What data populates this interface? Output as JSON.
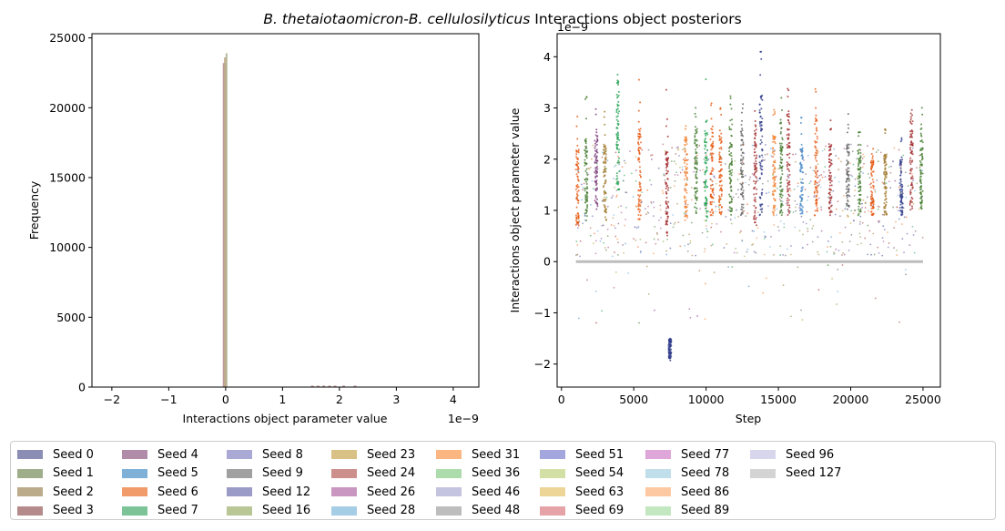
{
  "figure": {
    "title_italic": "B. thetaiotaomicron-B. cellulosilyticus",
    "title_rest": " Interactions object posteriors"
  },
  "chart_data": [
    {
      "type": "histogram",
      "xlabel": "Interactions object parameter value",
      "ylabel": "Frequency",
      "x_offset_text": "1e−9",
      "x_scale": 1e-09,
      "xlim": [
        -2.35,
        4.45
      ],
      "ylim": [
        0,
        25300
      ],
      "xticks": [
        -2,
        -1,
        0,
        1,
        2,
        3,
        4
      ],
      "xtick_labels": [
        "−2",
        "−1",
        "0",
        "1",
        "2",
        "3",
        "4"
      ],
      "yticks": [
        0,
        5000,
        10000,
        15000,
        20000,
        25000
      ],
      "ytick_labels": [
        "0",
        "5000",
        "10000",
        "15000",
        "20000",
        "25000"
      ],
      "bars": [
        {
          "x0": -0.05,
          "x1": 0.0,
          "value": 23200,
          "series": "Seed 3"
        },
        {
          "x0": 0.0,
          "x1": 0.03,
          "value": 23900,
          "series": "Seed 1"
        },
        {
          "x0": -0.03,
          "x1": 0.02,
          "value": 23600,
          "series": "Seed 2"
        }
      ]
    },
    {
      "type": "scatter",
      "xlabel": "Step",
      "ylabel": "Interactions object parameter value",
      "y_offset_text": "1e−9",
      "y_scale": 1e-09,
      "xlim": [
        -300,
        26200
      ],
      "ylim": [
        -2.45,
        4.45
      ],
      "xticks": [
        0,
        5000,
        10000,
        15000,
        20000,
        25000
      ],
      "xtick_labels": [
        "0",
        "5000",
        "10000",
        "15000",
        "20000",
        "25000"
      ],
      "yticks": [
        -2,
        -1,
        0,
        1,
        2,
        3,
        4
      ],
      "ytick_labels": [
        "−2",
        "−1",
        "0",
        "1",
        "2",
        "3",
        "4"
      ],
      "baseline": {
        "x0": 1000,
        "x1": 25000,
        "value": 0,
        "color": "#bdbdbd"
      },
      "point_clusters": [
        {
          "x": 1100,
          "ymin": 0.7,
          "ymax": 2.2,
          "ext": 3.0,
          "series": 6
        },
        {
          "x": 1700,
          "ymin": 0.8,
          "ymax": 2.4,
          "ext": 3.3,
          "series": 1
        },
        {
          "x": 2400,
          "ymin": 1.0,
          "ymax": 2.5,
          "ext": 3.0,
          "series": 4
        },
        {
          "x": 3000,
          "ymin": 0.8,
          "ymax": 2.3,
          "ext": 3.0,
          "series": 2
        },
        {
          "x": 3900,
          "ymin": 1.4,
          "ymax": 3.5,
          "ext": 3.7,
          "series": 7
        },
        {
          "x": 5400,
          "ymin": 0.8,
          "ymax": 2.6,
          "ext": 3.6,
          "series": 6
        },
        {
          "x": 7300,
          "ymin": 0.5,
          "ymax": 2.2,
          "ext": 3.5,
          "series": 3
        },
        {
          "x": 7500,
          "ymin": -1.9,
          "ymax": -1.5,
          "ext": -2.1,
          "series": 0
        },
        {
          "x": 8600,
          "ymin": 0.8,
          "ymax": 2.4,
          "ext": 3.0,
          "series": 16
        },
        {
          "x": 9300,
          "ymin": 0.9,
          "ymax": 2.6,
          "ext": 3.1,
          "series": 1
        },
        {
          "x": 10000,
          "ymin": 0.8,
          "ymax": 2.6,
          "ext": 3.8,
          "series": 7
        },
        {
          "x": 10400,
          "ymin": 0.9,
          "ymax": 2.6,
          "ext": 3.3,
          "series": 6
        },
        {
          "x": 11000,
          "ymin": 0.9,
          "ymax": 2.5,
          "ext": 3.0,
          "series": 6
        },
        {
          "x": 11700,
          "ymin": 0.9,
          "ymax": 2.8,
          "ext": 3.4,
          "series": 1
        },
        {
          "x": 12500,
          "ymin": 0.9,
          "ymax": 2.7,
          "ext": 3.1,
          "series": 9
        },
        {
          "x": 13400,
          "ymin": 0.7,
          "ymax": 2.6,
          "ext": 3.2,
          "series": 3
        },
        {
          "x": 13800,
          "ymin": 0.9,
          "ymax": 3.4,
          "ext": 4.1,
          "series": 0
        },
        {
          "x": 14700,
          "ymin": 0.9,
          "ymax": 2.5,
          "ext": 3.0,
          "series": 16
        },
        {
          "x": 15200,
          "ymin": 0.9,
          "ymax": 2.7,
          "ext": 3.2,
          "series": 1
        },
        {
          "x": 15700,
          "ymin": 0.9,
          "ymax": 2.9,
          "ext": 3.4,
          "series": 3
        },
        {
          "x": 16600,
          "ymin": 0.9,
          "ymax": 2.3,
          "ext": 2.9,
          "series": 5
        },
        {
          "x": 17600,
          "ymin": 0.9,
          "ymax": 2.8,
          "ext": 3.4,
          "series": 6
        },
        {
          "x": 18600,
          "ymin": 0.9,
          "ymax": 2.3,
          "ext": 2.9,
          "series": 3
        },
        {
          "x": 19800,
          "ymin": 1.0,
          "ymax": 2.3,
          "ext": 2.9,
          "series": 9
        },
        {
          "x": 20600,
          "ymin": 0.9,
          "ymax": 2.3,
          "ext": 2.8,
          "series": 1
        },
        {
          "x": 21500,
          "ymin": 0.9,
          "ymax": 2.0,
          "ext": 2.4,
          "series": 6
        },
        {
          "x": 22400,
          "ymin": 0.9,
          "ymax": 2.1,
          "ext": 2.6,
          "series": 2
        },
        {
          "x": 23500,
          "ymin": 0.9,
          "ymax": 2.0,
          "ext": 2.5,
          "series": 0
        },
        {
          "x": 24200,
          "ymin": 0.9,
          "ymax": 2.8,
          "ext": 3.1,
          "series": 3
        },
        {
          "x": 24900,
          "ymin": 1.0,
          "ymax": 2.6,
          "ext": 3.1,
          "series": 1
        }
      ]
    }
  ],
  "legend": {
    "columns": 9,
    "items": [
      {
        "label": "Seed 0",
        "color": "#8b8db5"
      },
      {
        "label": "Seed 1",
        "color": "#9fae8a"
      },
      {
        "label": "Seed 2",
        "color": "#bcab8a"
      },
      {
        "label": "Seed 3",
        "color": "#b58a8a"
      },
      {
        "label": "Seed 4",
        "color": "#b08ca9"
      },
      {
        "label": "Seed 5",
        "color": "#7fb0d8"
      },
      {
        "label": "Seed 6",
        "color": "#f19b6b"
      },
      {
        "label": "Seed 7",
        "color": "#7cc497"
      },
      {
        "label": "Seed 8",
        "color": "#aaa8d4"
      },
      {
        "label": "Seed 9",
        "color": "#a0a0a0"
      },
      {
        "label": "Seed 12",
        "color": "#9b9bc8"
      },
      {
        "label": "Seed 16",
        "color": "#b9c696"
      },
      {
        "label": "Seed 23",
        "color": "#d9c185"
      },
      {
        "label": "Seed 24",
        "color": "#cd8f8b"
      },
      {
        "label": "Seed 26",
        "color": "#c996c2"
      },
      {
        "label": "Seed 28",
        "color": "#a6cde6"
      },
      {
        "label": "Seed 31",
        "color": "#fcb682"
      },
      {
        "label": "Seed 36",
        "color": "#addcac"
      },
      {
        "label": "Seed 46",
        "color": "#c4c3e0"
      },
      {
        "label": "Seed 48",
        "color": "#bdbdbd"
      },
      {
        "label": "Seed 51",
        "color": "#a4a7de"
      },
      {
        "label": "Seed 54",
        "color": "#d3e0a5"
      },
      {
        "label": "Seed 63",
        "color": "#edd598"
      },
      {
        "label": "Seed 69",
        "color": "#e5a3a7"
      },
      {
        "label": "Seed 77",
        "color": "#dfa7d9"
      },
      {
        "label": "Seed 78",
        "color": "#c1deeb"
      },
      {
        "label": "Seed 86",
        "color": "#fcc9a2"
      },
      {
        "label": "Seed 89",
        "color": "#c3e8c1"
      },
      {
        "label": "Seed 96",
        "color": "#d7d6ec"
      },
      {
        "label": "Seed 127",
        "color": "#d4d4d4"
      }
    ]
  },
  "scatter_palette": [
    "#2f3b8a",
    "#3f7a2a",
    "#a0782a",
    "#a0282a",
    "#7a3a7a",
    "#4a8ac8",
    "#e6550d",
    "#20a050",
    "#6a5aa8",
    "#606060",
    "#4a4aa0",
    "#7a9a3a",
    "#c09a30",
    "#a04a40",
    "#a04a90",
    "#6aaee0",
    "#f08030"
  ]
}
